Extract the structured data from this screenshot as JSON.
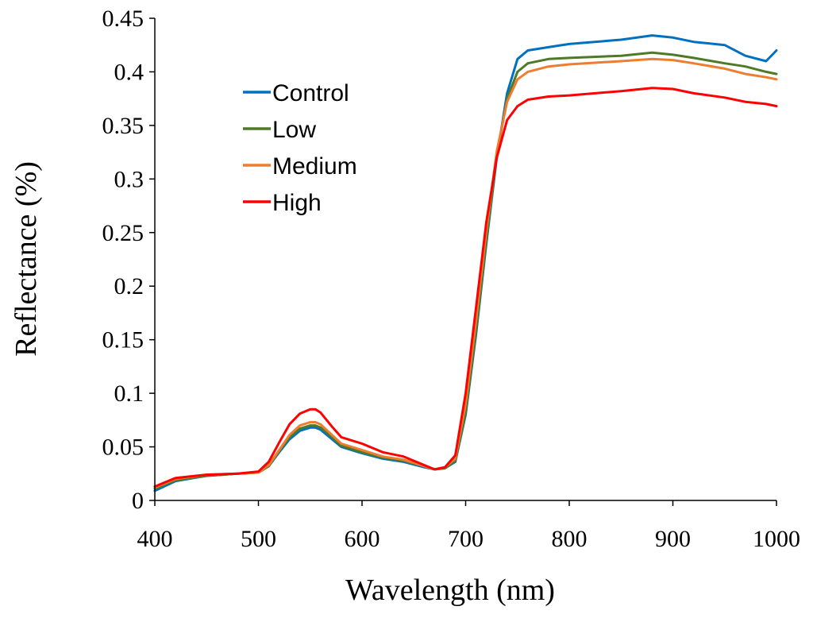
{
  "chart_data": {
    "type": "line",
    "title": "",
    "xlabel": "Wavelength (nm)",
    "ylabel": "Reflectance (%)",
    "xlim": [
      400,
      1000
    ],
    "ylim": [
      0,
      0.45
    ],
    "xticks": [
      400,
      500,
      600,
      700,
      800,
      900,
      1000
    ],
    "xtick_labels": [
      "400",
      "500",
      "600",
      "700",
      "800",
      "900",
      "1000"
    ],
    "yticks": [
      0,
      0.05,
      0.1,
      0.15,
      0.2,
      0.25,
      0.3,
      0.35,
      0.4,
      0.45
    ],
    "ytick_labels": [
      "0",
      "0.05",
      "0.1",
      "0.15",
      "0.2",
      "0.25",
      "0.3",
      "0.35",
      "0.4",
      "0.45"
    ],
    "grid": false,
    "legend_position": "top-left",
    "x": [
      400,
      420,
      450,
      480,
      500,
      510,
      520,
      530,
      540,
      550,
      555,
      560,
      570,
      580,
      600,
      620,
      640,
      660,
      670,
      680,
      690,
      700,
      710,
      720,
      730,
      740,
      750,
      760,
      780,
      800,
      850,
      880,
      900,
      920,
      950,
      970,
      990,
      1000
    ],
    "series": [
      {
        "name": "Control",
        "color": "#0070c0",
        "values": [
          0.009,
          0.018,
          0.023,
          0.025,
          0.026,
          0.032,
          0.045,
          0.057,
          0.065,
          0.068,
          0.068,
          0.066,
          0.058,
          0.05,
          0.044,
          0.039,
          0.036,
          0.031,
          0.029,
          0.03,
          0.036,
          0.08,
          0.155,
          0.24,
          0.32,
          0.38,
          0.412,
          0.42,
          0.423,
          0.426,
          0.43,
          0.434,
          0.432,
          0.428,
          0.425,
          0.415,
          0.41,
          0.42
        ]
      },
      {
        "name": "Low",
        "color": "#4e7a28",
        "values": [
          0.011,
          0.019,
          0.023,
          0.025,
          0.026,
          0.032,
          0.046,
          0.059,
          0.067,
          0.07,
          0.07,
          0.068,
          0.06,
          0.051,
          0.045,
          0.04,
          0.037,
          0.032,
          0.029,
          0.03,
          0.037,
          0.082,
          0.158,
          0.243,
          0.322,
          0.375,
          0.4,
          0.408,
          0.412,
          0.413,
          0.415,
          0.418,
          0.416,
          0.413,
          0.408,
          0.405,
          0.4,
          0.398
        ]
      },
      {
        "name": "Medium",
        "color": "#ed7d31",
        "values": [
          0.012,
          0.02,
          0.024,
          0.025,
          0.026,
          0.033,
          0.047,
          0.061,
          0.07,
          0.073,
          0.073,
          0.071,
          0.062,
          0.053,
          0.047,
          0.041,
          0.038,
          0.032,
          0.029,
          0.031,
          0.039,
          0.09,
          0.168,
          0.252,
          0.326,
          0.372,
          0.393,
          0.4,
          0.405,
          0.407,
          0.41,
          0.412,
          0.411,
          0.408,
          0.403,
          0.398,
          0.395,
          0.393
        ]
      },
      {
        "name": "High",
        "color": "#ff0000",
        "values": [
          0.013,
          0.021,
          0.024,
          0.025,
          0.027,
          0.036,
          0.054,
          0.071,
          0.081,
          0.085,
          0.085,
          0.082,
          0.07,
          0.059,
          0.053,
          0.045,
          0.041,
          0.033,
          0.029,
          0.031,
          0.042,
          0.1,
          0.18,
          0.26,
          0.32,
          0.355,
          0.368,
          0.374,
          0.377,
          0.378,
          0.382,
          0.385,
          0.384,
          0.38,
          0.376,
          0.372,
          0.37,
          0.368
        ]
      }
    ]
  }
}
